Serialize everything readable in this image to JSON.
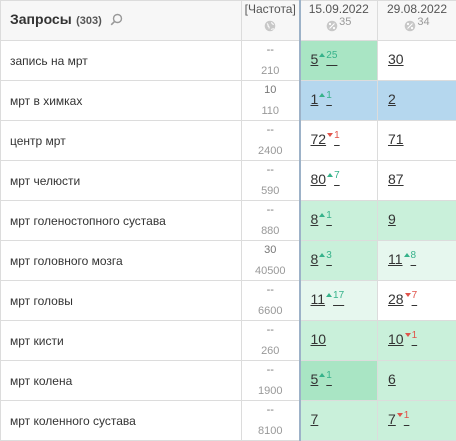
{
  "header": {
    "title": "Запросы",
    "count": "(303)",
    "freq_label": "[Частота]",
    "dates": [
      {
        "label": "15.09.2022",
        "pct": "35"
      },
      {
        "label": "29.08.2022",
        "pct": "34"
      }
    ]
  },
  "colors": {
    "top1": "#b5d7ee",
    "top5": "#a9e5c4",
    "top10": "#c9f0da",
    "top20": "#e6f7ee",
    "up": "#36b28a",
    "down": "#e0534a"
  },
  "rows": [
    {
      "query": "запись на мрт",
      "freq_top": "--",
      "freq_bottom": "210",
      "pos1": {
        "value": "5",
        "delta": "25",
        "dir": "up",
        "bg": "#a9e5c4"
      },
      "pos2": {
        "value": "30",
        "delta": "",
        "dir": "",
        "bg": "#ffffff"
      }
    },
    {
      "query": "мрт в химках",
      "freq_top": "10",
      "freq_bottom": "110",
      "pos1": {
        "value": "1",
        "delta": "1",
        "dir": "up",
        "bg": "#b5d7ee"
      },
      "pos2": {
        "value": "2",
        "delta": "",
        "dir": "",
        "bg": "#b5d7ee"
      }
    },
    {
      "query": "центр мрт",
      "freq_top": "--",
      "freq_bottom": "2400",
      "pos1": {
        "value": "72",
        "delta": "1",
        "dir": "down",
        "bg": "#ffffff"
      },
      "pos2": {
        "value": "71",
        "delta": "",
        "dir": "",
        "bg": "#ffffff"
      }
    },
    {
      "query": "мрт челюсти",
      "freq_top": "--",
      "freq_bottom": "590",
      "pos1": {
        "value": "80",
        "delta": "7",
        "dir": "up",
        "bg": "#ffffff"
      },
      "pos2": {
        "value": "87",
        "delta": "",
        "dir": "",
        "bg": "#ffffff"
      }
    },
    {
      "query": "мрт голеностопного сустава",
      "freq_top": "--",
      "freq_bottom": "880",
      "pos1": {
        "value": "8",
        "delta": "1",
        "dir": "up",
        "bg": "#c9f0da"
      },
      "pos2": {
        "value": "9",
        "delta": "",
        "dir": "",
        "bg": "#c9f0da"
      }
    },
    {
      "query": "мрт головного мозга",
      "freq_top": "30",
      "freq_bottom": "40500",
      "pos1": {
        "value": "8",
        "delta": "3",
        "dir": "up",
        "bg": "#c9f0da"
      },
      "pos2": {
        "value": "11",
        "delta": "8",
        "dir": "up",
        "bg": "#e6f7ee"
      }
    },
    {
      "query": "мрт головы",
      "freq_top": "--",
      "freq_bottom": "6600",
      "pos1": {
        "value": "11",
        "delta": "17",
        "dir": "up",
        "bg": "#e6f7ee"
      },
      "pos2": {
        "value": "28",
        "delta": "7",
        "dir": "down",
        "bg": "#ffffff"
      }
    },
    {
      "query": "мрт кисти",
      "freq_top": "--",
      "freq_bottom": "260",
      "pos1": {
        "value": "10",
        "delta": "",
        "dir": "",
        "bg": "#c9f0da"
      },
      "pos2": {
        "value": "10",
        "delta": "1",
        "dir": "down",
        "bg": "#c9f0da"
      }
    },
    {
      "query": "мрт колена",
      "freq_top": "--",
      "freq_bottom": "1900",
      "pos1": {
        "value": "5",
        "delta": "1",
        "dir": "up",
        "bg": "#a9e5c4"
      },
      "pos2": {
        "value": "6",
        "delta": "",
        "dir": "",
        "bg": "#c9f0da"
      }
    },
    {
      "query": "мрт коленного сустава",
      "freq_top": "--",
      "freq_bottom": "8100",
      "pos1": {
        "value": "7",
        "delta": "",
        "dir": "",
        "bg": "#c9f0da"
      },
      "pos2": {
        "value": "7",
        "delta": "1",
        "dir": "down",
        "bg": "#c9f0da"
      }
    }
  ]
}
